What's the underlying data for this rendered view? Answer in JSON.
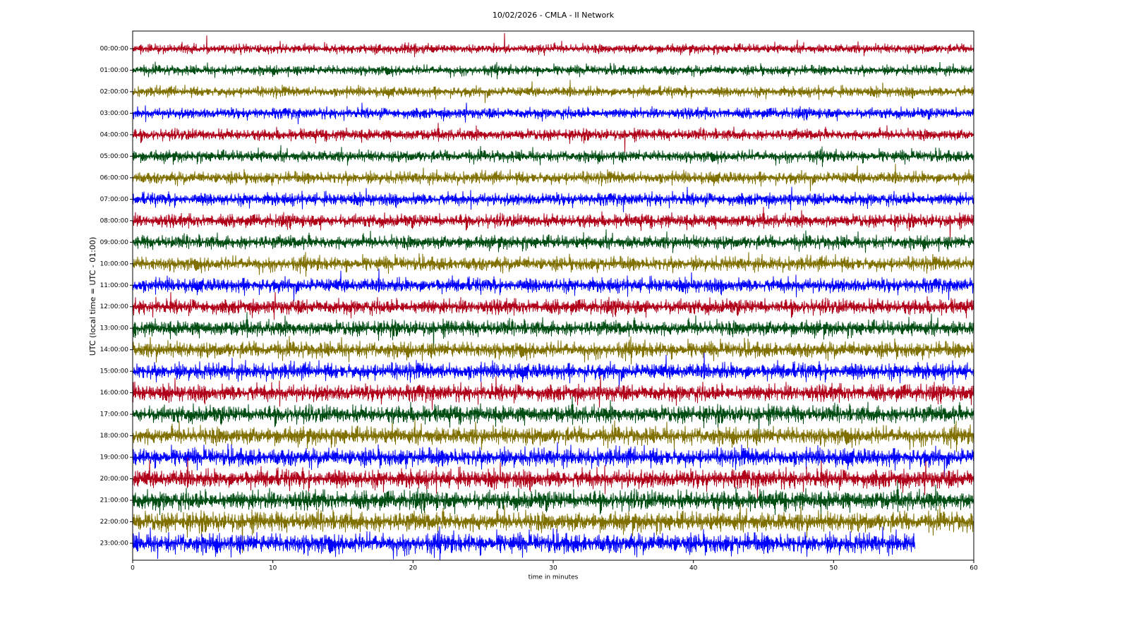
{
  "chart_data": {
    "type": "helicorder",
    "title": "10/02/2026 - CMLA - II Network",
    "xlabel": "time in minutes",
    "ylabel": "UTC (local time = UTC - 01:00)",
    "categories": [
      "00:00:00",
      "01:00:00",
      "02:00:00",
      "03:00:00",
      "04:00:00",
      "05:00:00",
      "06:00:00",
      "07:00:00",
      "08:00:00",
      "09:00:00",
      "10:00:00",
      "11:00:00",
      "12:00:00",
      "13:00:00",
      "14:00:00",
      "15:00:00",
      "16:00:00",
      "17:00:00",
      "18:00:00",
      "19:00:00",
      "20:00:00",
      "21:00:00",
      "22:00:00",
      "23:00:00"
    ],
    "colors": [
      "#b0001a",
      "#004d14",
      "#807000",
      "#0000ff"
    ],
    "x_end": [
      60,
      60,
      60,
      60,
      60,
      60,
      60,
      60,
      60,
      60,
      60,
      60,
      60,
      60,
      60,
      60,
      60,
      60,
      60,
      60,
      60,
      60,
      60,
      55.8
    ],
    "xlim": [
      0,
      60
    ],
    "xticks": [
      0,
      10,
      20,
      30,
      40,
      50,
      60
    ]
  }
}
